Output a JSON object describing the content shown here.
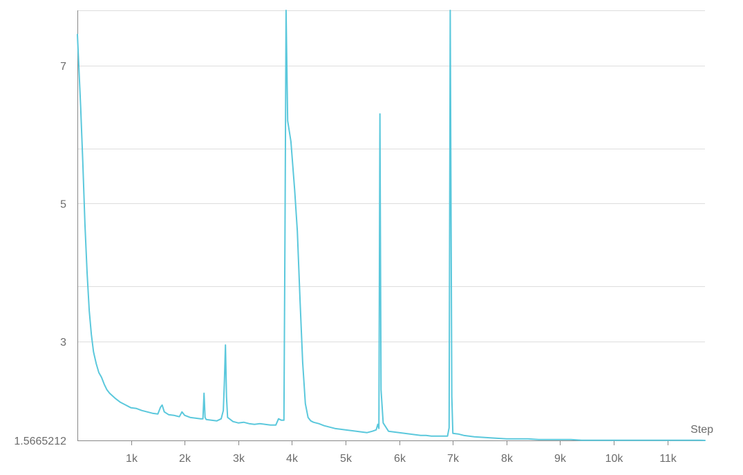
{
  "chart_data": {
    "type": "line",
    "title": "",
    "xlabel": "Step",
    "ylabel": "",
    "xlim": [
      0,
      11700
    ],
    "ylim": [
      1.5665212,
      7.8
    ],
    "grid": true,
    "legend": "none",
    "x_ticks": [
      1000,
      2000,
      3000,
      4000,
      5000,
      6000,
      7000,
      8000,
      9000,
      10000,
      11000
    ],
    "x_tick_labels": [
      "1k",
      "2k",
      "3k",
      "4k",
      "5k",
      "6k",
      "7k",
      "8k",
      "9k",
      "10k",
      "11k"
    ],
    "y_ticks": [
      1.5665212,
      3,
      5,
      7
    ],
    "y_tick_labels": [
      "1.5665212",
      "3",
      "5",
      "7"
    ],
    "y_gridlines": [
      1.5665212,
      3,
      3.8,
      5,
      5.8,
      7,
      7.8
    ],
    "colors": {
      "line": "#5bc8dc",
      "grid": "#dddddd",
      "axis": "#888888",
      "text": "#6b6b6b"
    },
    "series": [
      {
        "values": [
          [
            0,
            7.45
          ],
          [
            60,
            6.4
          ],
          [
            100,
            5.6
          ],
          [
            140,
            4.7
          ],
          [
            180,
            4.0
          ],
          [
            220,
            3.45
          ],
          [
            260,
            3.1
          ],
          [
            300,
            2.85
          ],
          [
            350,
            2.68
          ],
          [
            400,
            2.55
          ],
          [
            450,
            2.48
          ],
          [
            500,
            2.38
          ],
          [
            550,
            2.3
          ],
          [
            600,
            2.25
          ],
          [
            700,
            2.18
          ],
          [
            800,
            2.12
          ],
          [
            900,
            2.08
          ],
          [
            950,
            2.06
          ],
          [
            1000,
            2.04
          ],
          [
            1100,
            2.03
          ],
          [
            1200,
            2.0
          ],
          [
            1300,
            1.98
          ],
          [
            1400,
            1.96
          ],
          [
            1500,
            1.95
          ],
          [
            1550,
            2.05
          ],
          [
            1580,
            2.08
          ],
          [
            1620,
            1.98
          ],
          [
            1700,
            1.94
          ],
          [
            1800,
            1.93
          ],
          [
            1900,
            1.91
          ],
          [
            1950,
            1.98
          ],
          [
            2000,
            1.93
          ],
          [
            2100,
            1.9
          ],
          [
            2200,
            1.89
          ],
          [
            2300,
            1.88
          ],
          [
            2340,
            1.88
          ],
          [
            2360,
            2.25
          ],
          [
            2380,
            1.9
          ],
          [
            2400,
            1.87
          ],
          [
            2500,
            1.86
          ],
          [
            2600,
            1.85
          ],
          [
            2680,
            1.88
          ],
          [
            2720,
            2.0
          ],
          [
            2740,
            2.4
          ],
          [
            2760,
            2.95
          ],
          [
            2780,
            2.2
          ],
          [
            2800,
            1.9
          ],
          [
            2900,
            1.84
          ],
          [
            3000,
            1.82
          ],
          [
            3100,
            1.83
          ],
          [
            3200,
            1.81
          ],
          [
            3300,
            1.8
          ],
          [
            3400,
            1.81
          ],
          [
            3500,
            1.8
          ],
          [
            3600,
            1.79
          ],
          [
            3700,
            1.79
          ],
          [
            3750,
            1.88
          ],
          [
            3800,
            1.86
          ],
          [
            3850,
            1.86
          ],
          [
            3870,
            4.5
          ],
          [
            3890,
            7.8
          ],
          [
            3920,
            6.2
          ],
          [
            3980,
            5.9
          ],
          [
            4050,
            5.2
          ],
          [
            4100,
            4.6
          ],
          [
            4150,
            3.6
          ],
          [
            4200,
            2.7
          ],
          [
            4250,
            2.1
          ],
          [
            4300,
            1.9
          ],
          [
            4350,
            1.85
          ],
          [
            4400,
            1.83
          ],
          [
            4500,
            1.81
          ],
          [
            4600,
            1.78
          ],
          [
            4700,
            1.76
          ],
          [
            4800,
            1.74
          ],
          [
            4900,
            1.73
          ],
          [
            5000,
            1.72
          ],
          [
            5100,
            1.71
          ],
          [
            5200,
            1.7
          ],
          [
            5300,
            1.69
          ],
          [
            5400,
            1.68
          ],
          [
            5500,
            1.7
          ],
          [
            5570,
            1.72
          ],
          [
            5600,
            1.8
          ],
          [
            5620,
            1.74
          ],
          [
            5640,
            6.3
          ],
          [
            5660,
            2.3
          ],
          [
            5700,
            1.82
          ],
          [
            5800,
            1.7
          ],
          [
            5900,
            1.69
          ],
          [
            6000,
            1.68
          ],
          [
            6100,
            1.67
          ],
          [
            6200,
            1.66
          ],
          [
            6300,
            1.65
          ],
          [
            6400,
            1.64
          ],
          [
            6500,
            1.64
          ],
          [
            6600,
            1.63
          ],
          [
            6700,
            1.63
          ],
          [
            6800,
            1.63
          ],
          [
            6900,
            1.63
          ],
          [
            6930,
            1.75
          ],
          [
            6950,
            7.8
          ],
          [
            6980,
            2.2
          ],
          [
            7000,
            1.67
          ],
          [
            7100,
            1.66
          ],
          [
            7200,
            1.64
          ],
          [
            7400,
            1.62
          ],
          [
            7600,
            1.61
          ],
          [
            7800,
            1.6
          ],
          [
            8000,
            1.59
          ],
          [
            8200,
            1.59
          ],
          [
            8400,
            1.59
          ],
          [
            8600,
            1.58
          ],
          [
            8800,
            1.58
          ],
          [
            9000,
            1.58
          ],
          [
            9200,
            1.58
          ],
          [
            9400,
            1.57
          ],
          [
            9600,
            1.57
          ],
          [
            9800,
            1.57
          ],
          [
            10000,
            1.57
          ],
          [
            10200,
            1.57
          ],
          [
            10400,
            1.57
          ],
          [
            10600,
            1.57
          ],
          [
            10800,
            1.57
          ],
          [
            11000,
            1.57
          ],
          [
            11200,
            1.57
          ],
          [
            11400,
            1.57
          ],
          [
            11600,
            1.57
          ],
          [
            11700,
            1.5665212
          ]
        ]
      }
    ]
  }
}
